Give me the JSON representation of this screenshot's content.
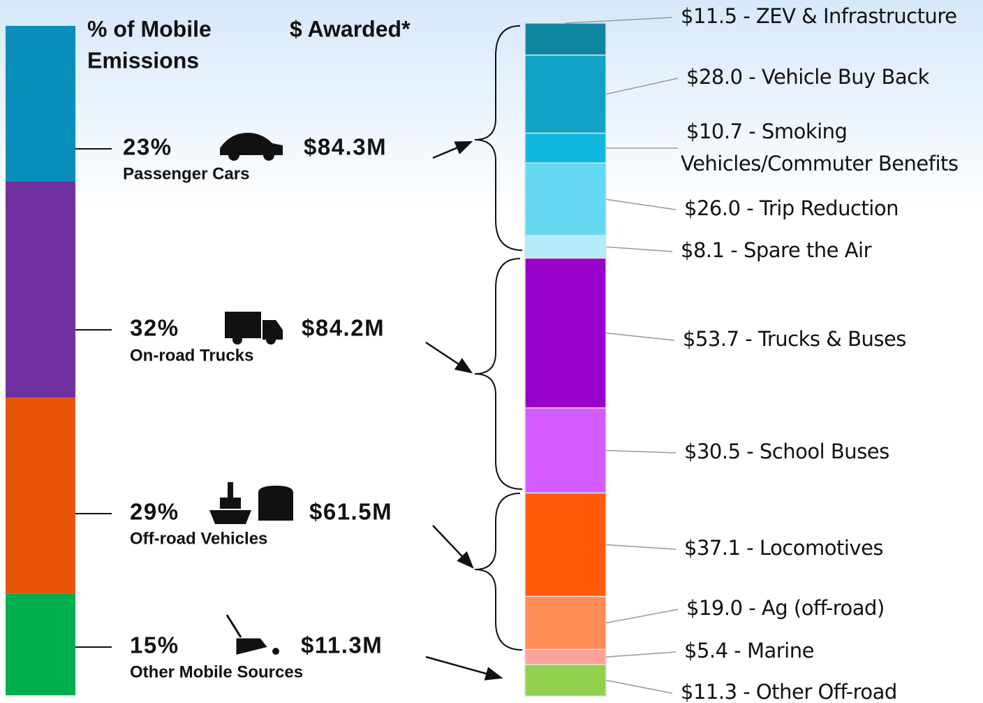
{
  "header": {
    "emissions_label": [
      "% of  Mobile",
      "Emissions"
    ],
    "awarded_label": "$ Awarded*"
  },
  "groups": [
    {
      "percent": 23,
      "percent_label": "23%",
      "name": "Passenger Cars",
      "awarded": "$84.3M",
      "color": "#0a8fbd"
    },
    {
      "percent": 32,
      "percent_label": "32%",
      "name": "On-road Trucks",
      "awarded": "$84.2M",
      "color": "#7030a0"
    },
    {
      "percent": 29,
      "percent_label": "29%",
      "name": "Off-road Vehicles",
      "awarded": "$61.5M",
      "color": "#e85508"
    },
    {
      "percent": 15,
      "percent_label": "15%",
      "name": "Other Mobile Sources",
      "awarded": "$11.3M",
      "color": "#00b050"
    }
  ],
  "programs": [
    {
      "value": 11.5,
      "lines": [
        "$11.5 - ZEV & Infrastructure"
      ],
      "color": "#0e86a0"
    },
    {
      "value": 28.0,
      "lines": [
        "$28.0 - Vehicle Buy Back"
      ],
      "color": "#10a3c6"
    },
    {
      "value": 10.7,
      "lines": [
        "$10.7 - Smoking",
        "Vehicles/Commuter  Benefits"
      ],
      "color": "#10b8e0"
    },
    {
      "value": 26.0,
      "lines": [
        "$26.0 - Trip Reduction"
      ],
      "color": "#66d9f2"
    },
    {
      "value": 8.1,
      "lines": [
        "$8.1 - Spare the Air"
      ],
      "color": "#b3ecf8"
    },
    {
      "value": 53.7,
      "lines": [
        "$53.7 - Trucks & Buses"
      ],
      "color": "#9900cc"
    },
    {
      "value": 30.5,
      "lines": [
        "$30.5 - School Buses"
      ],
      "color": "#d45cff"
    },
    {
      "value": 37.1,
      "lines": [
        "$37.1 - Locomotives"
      ],
      "color": "#ff5b0a"
    },
    {
      "value": 19.0,
      "lines": [
        "$19.0 - Ag (off-road)"
      ],
      "color": "#ff8c55"
    },
    {
      "value": 5.4,
      "lines": [
        "$5.4 - Marine"
      ],
      "color": "#ffa39a"
    },
    {
      "value": 11.3,
      "lines": [
        "$11.3 - Other Off-road"
      ],
      "color": "#92d050"
    }
  ]
}
